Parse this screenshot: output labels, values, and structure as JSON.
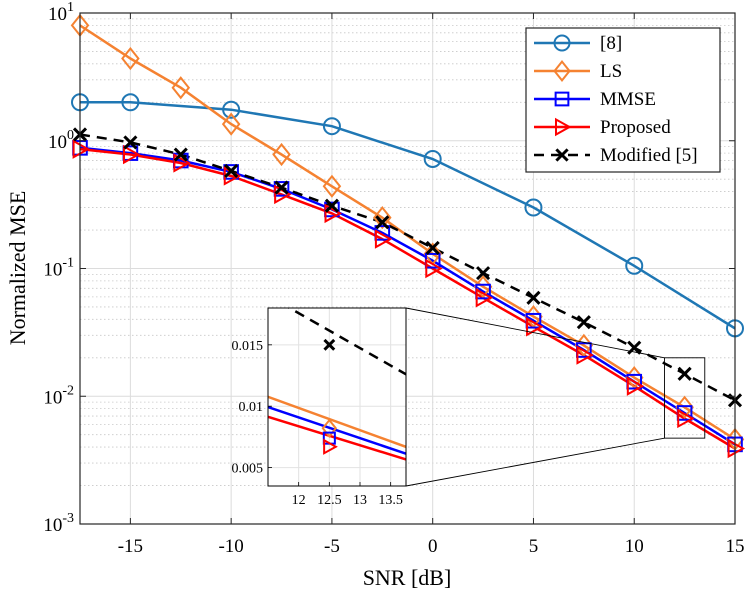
{
  "chart_data": {
    "type": "line",
    "xlabel": "SNR [dB]",
    "ylabel": "Normalized MSE",
    "xlim": [
      -17.5,
      15
    ],
    "ylim": [
      0.001,
      10
    ],
    "yscale": "log",
    "grid": true,
    "legend_position": "top-right",
    "x_ticks": [
      -15,
      -10,
      -5,
      0,
      5,
      10,
      15
    ],
    "x_tick_labels": [
      "-15",
      "-10",
      "-5",
      "0",
      "5",
      "10",
      "15"
    ],
    "y_ticks": [
      {
        "value": 10,
        "base": "10",
        "exp": "1"
      },
      {
        "value": 1,
        "base": "10",
        "exp": "0"
      },
      {
        "value": 0.1,
        "base": "10",
        "exp": "-1"
      },
      {
        "value": 0.01,
        "base": "10",
        "exp": "-2"
      },
      {
        "value": 0.001,
        "base": "10",
        "exp": "-3"
      }
    ],
    "x": [
      -17.5,
      -15,
      -12.5,
      -10,
      -7.5,
      -5,
      -2.5,
      0,
      2.5,
      5,
      7.5,
      10,
      12.5,
      15
    ],
    "series": [
      {
        "name": "[8]",
        "color": "#1f77b4",
        "marker": "circle",
        "dashed": false,
        "x": [
          -17.5,
          -15,
          -10,
          -5,
          0,
          5,
          10,
          15
        ],
        "values": [
          2.0,
          2.0,
          1.75,
          1.3,
          0.72,
          0.3,
          0.105,
          0.034
        ]
      },
      {
        "name": "LS",
        "color": "#f58231",
        "marker": "diamond",
        "dashed": false,
        "x": [
          -17.5,
          -15,
          -12.5,
          -10,
          -7.5,
          -5,
          -2.5,
          0,
          2.5,
          5,
          7.5,
          10,
          12.5,
          15
        ],
        "values": [
          8.0,
          4.4,
          2.6,
          1.35,
          0.78,
          0.44,
          0.25,
          0.13,
          0.072,
          0.042,
          0.025,
          0.014,
          0.0082,
          0.0046
        ]
      },
      {
        "name": "MMSE",
        "color": "#0000ff",
        "marker": "square",
        "dashed": false,
        "x": [
          -17.5,
          -15,
          -12.5,
          -10,
          -7.5,
          -5,
          -2.5,
          0,
          2.5,
          5,
          7.5,
          10,
          12.5,
          15
        ],
        "values": [
          0.88,
          0.8,
          0.7,
          0.57,
          0.42,
          0.29,
          0.19,
          0.115,
          0.066,
          0.039,
          0.023,
          0.013,
          0.0074,
          0.0042
        ]
      },
      {
        "name": "Proposed",
        "color": "#ff0000",
        "marker": "triangle-right",
        "dashed": false,
        "x": [
          -17.5,
          -15,
          -12.5,
          -10,
          -7.5,
          -5,
          -2.5,
          0,
          2.5,
          5,
          7.5,
          10,
          12.5,
          15
        ],
        "values": [
          0.86,
          0.78,
          0.67,
          0.53,
          0.38,
          0.27,
          0.17,
          0.1,
          0.059,
          0.035,
          0.021,
          0.012,
          0.0067,
          0.0039
        ]
      },
      {
        "name": "Modified [5]",
        "color": "#000000",
        "marker": "x",
        "dashed": true,
        "x": [
          -17.5,
          -15,
          -12.5,
          -10,
          -7.5,
          -5,
          -2.5,
          0,
          2.5,
          5,
          7.5,
          10,
          12.5,
          15
        ],
        "values": [
          1.12,
          0.97,
          0.78,
          0.58,
          0.43,
          0.31,
          0.23,
          0.145,
          0.092,
          0.059,
          0.038,
          0.024,
          0.015,
          0.0093
        ]
      }
    ],
    "inset": {
      "xlim": [
        11.5,
        13.75
      ],
      "ylim": [
        0.0035,
        0.018
      ],
      "x_ticks": [
        12,
        12.5,
        13,
        13.5
      ],
      "x_tick_labels": [
        "12",
        "12.5",
        "13",
        "13.5"
      ],
      "y_ticks": [
        0.005,
        0.01,
        0.015
      ],
      "y_tick_labels": [
        "0.005",
        "0.01",
        "0.015"
      ],
      "zoom_box_x": [
        11.5,
        13.5
      ],
      "zoom_box_y": [
        0.0047,
        0.02
      ]
    }
  }
}
